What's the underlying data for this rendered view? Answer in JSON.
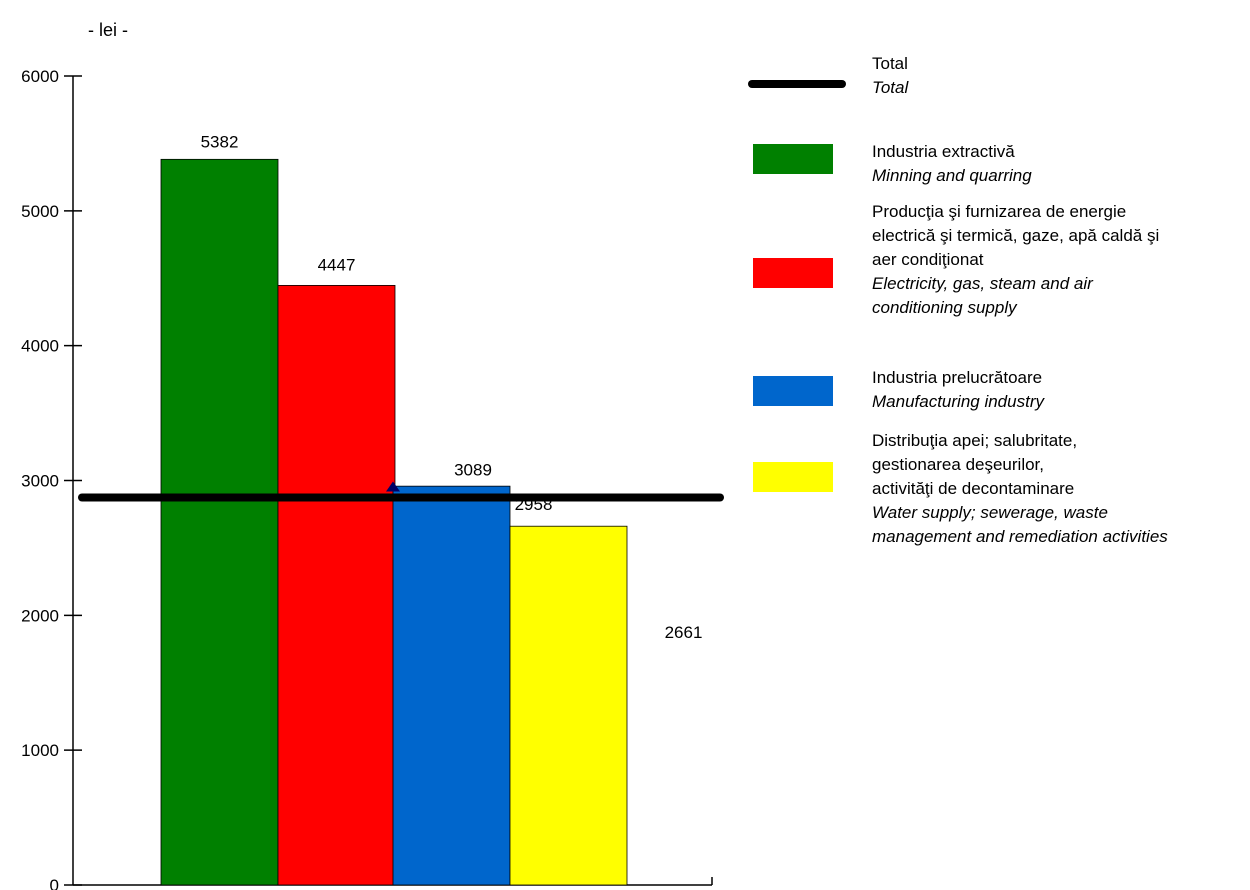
{
  "chart_data": {
    "type": "bar",
    "unit_label": "- lei -",
    "ylim": [
      0,
      6000
    ],
    "yticks": [
      0,
      1000,
      2000,
      3000,
      4000,
      5000,
      6000
    ],
    "series": [
      {
        "name": "Industria extractivă / Minning and quarring",
        "value": 5382,
        "color": "#008000"
      },
      {
        "name": "Producţia şi furnizarea de energie electrică şi termică, gaze, apă caldă şi aer condiţionat / Electricity, gas, steam and air conditioning supply",
        "value": 4447,
        "color": "#FF0000"
      },
      {
        "name": "Industria prelucrătoare / Manufacturing industry",
        "value": 2958,
        "color": "#0066CC"
      },
      {
        "name": "Distribuţia apei; salubritate, gestionarea deşeurilor, activităţi de decontaminare / Water supply; sewerage, waste management and remediation activities",
        "value": 2661,
        "color": "#FFFF00"
      }
    ],
    "total": {
      "name": "Total",
      "value": 3089,
      "color": "#000000"
    },
    "grid": false,
    "legend_position": "right"
  },
  "legend": {
    "items": [
      {
        "key": "total",
        "swatch": "line",
        "color": "#000000",
        "ro": [
          "Total"
        ],
        "en": [
          "Total"
        ]
      },
      {
        "key": "extractive",
        "swatch": "box",
        "color": "#008000",
        "ro": [
          "Industria extractivă"
        ],
        "en": [
          "Minning and quarring"
        ]
      },
      {
        "key": "energy",
        "swatch": "box",
        "color": "#FF0000",
        "ro": [
          "Producţia şi furnizarea de energie",
          "electrică şi termică, gaze, apă caldă şi",
          "aer condiţionat"
        ],
        "en": [
          "Electricity, gas, steam and air",
          "conditioning supply"
        ]
      },
      {
        "key": "manufacturing",
        "swatch": "box",
        "color": "#0066CC",
        "ro": [
          "Industria prelucrătoare"
        ],
        "en": [
          "Manufacturing industry"
        ]
      },
      {
        "key": "water",
        "swatch": "box",
        "color": "#FFFF00",
        "ro": [
          "Distribuţia apei; salubritate,",
          "gestionarea deşeurilor,",
          "activităţi de decontaminare"
        ],
        "en": [
          "Water supply; sewerage, waste",
          "management and remediation activities"
        ]
      }
    ]
  }
}
